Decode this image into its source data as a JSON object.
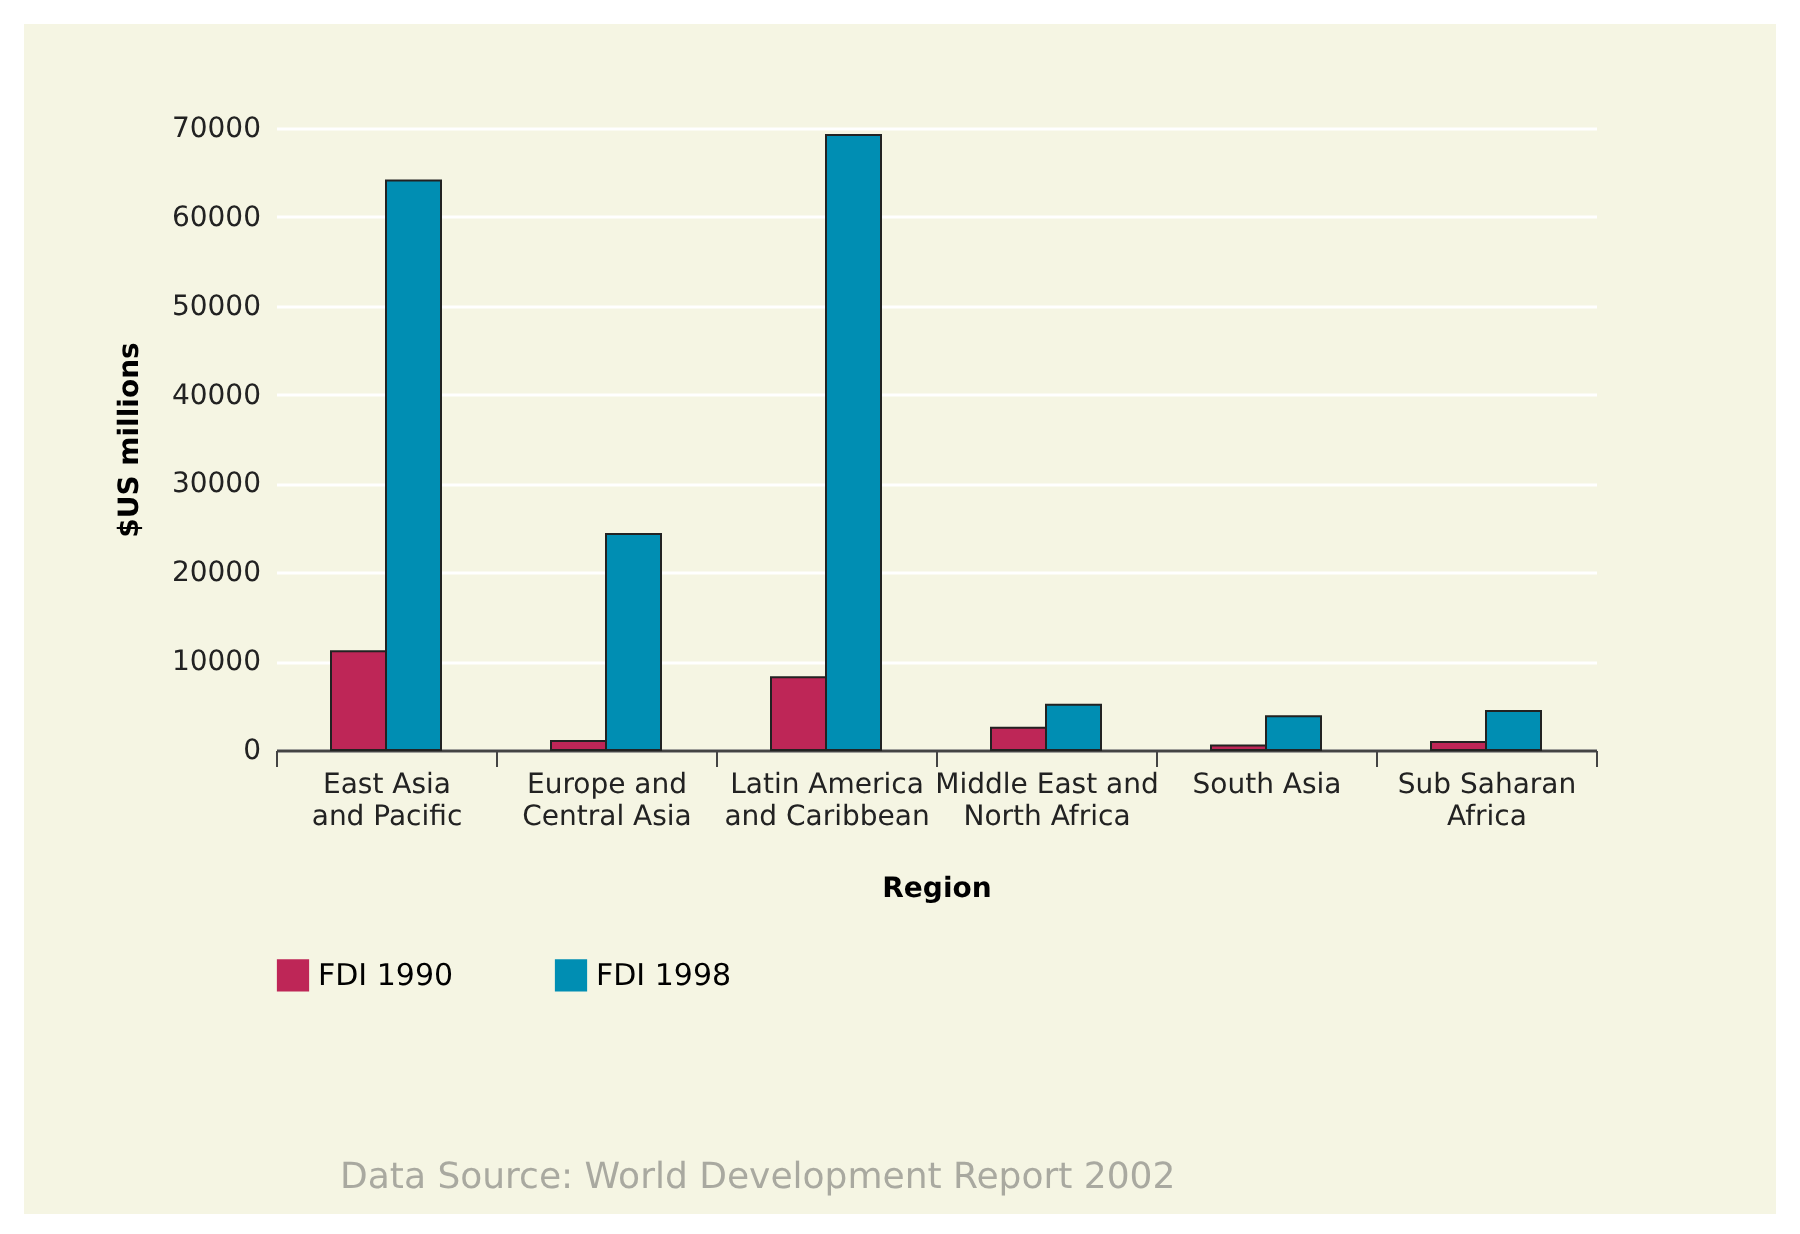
{
  "chart_data": {
    "type": "bar",
    "categories": [
      "East Asia and Pacific",
      "Europe and Central Asia",
      "Latin America and Caribbean",
      "Middle East and North Africa",
      "South Asia",
      "Sub Saharan Africa"
    ],
    "series": [
      {
        "name": "FDI 1990",
        "color": "#be2657",
        "values": [
          11100,
          1000,
          8200,
          2500,
          500,
          900
        ]
      },
      {
        "name": "FDI 1998",
        "color": "#008eb3",
        "values": [
          64100,
          24300,
          69200,
          5100,
          3800,
          4400
        ]
      }
    ],
    "xlabel": "Region",
    "ylabel": "$US millions",
    "ylim": [
      0,
      70000
    ],
    "yticks": [
      0,
      10000,
      20000,
      30000,
      40000,
      50000,
      60000,
      70000
    ],
    "grid": "y",
    "legend": "bottom left",
    "annotations": [
      "Data Source: World Development Report 2002"
    ]
  }
}
